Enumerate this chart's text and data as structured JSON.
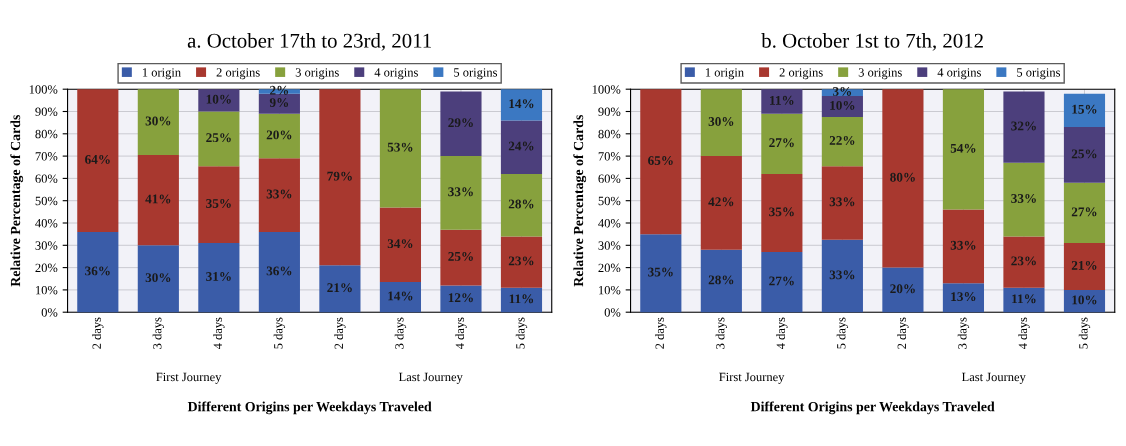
{
  "chart_data": [
    {
      "type": "bar",
      "title": "a. October 17th to 23rd, 2011",
      "xlabel": "Different Origins per Weekdays Traveled",
      "ylabel": "Relative Percentage of Cards",
      "categories": [
        "2 days",
        "3 days",
        "4 days",
        "5 days",
        "2 days",
        "3 days",
        "4 days",
        "5 days"
      ],
      "annotations": [
        "First Journey",
        "Last Journey"
      ],
      "stacked": true,
      "legend": "top",
      "grid": true,
      "ylim": [
        0,
        100
      ],
      "yticks": [
        {
          "value": 0,
          "label": "0%"
        },
        {
          "value": 10,
          "label": "10%"
        },
        {
          "value": 20,
          "label": "20%"
        },
        {
          "value": 30,
          "label": "30%"
        },
        {
          "value": 40,
          "label": "40%"
        },
        {
          "value": 50,
          "label": "50%"
        },
        {
          "value": 60,
          "label": "60%"
        },
        {
          "value": 70,
          "label": "70%"
        },
        {
          "value": 80,
          "label": "80%"
        },
        {
          "value": 90,
          "label": "90%"
        },
        {
          "value": 100,
          "label": "100%"
        }
      ],
      "series": [
        {
          "name": "1 origin",
          "color": "#3a5ca8",
          "values": [
            36,
            30,
            31,
            36,
            21,
            13.5,
            12,
            11
          ],
          "value_labels": [
            "36%",
            "30%",
            "31%",
            "36%",
            "21%",
            "14%",
            "12%",
            "11%"
          ]
        },
        {
          "name": "2 origins",
          "color": "#a8382f",
          "values": [
            64,
            40.5,
            34.5,
            33,
            79,
            33.5,
            25,
            23
          ],
          "value_labels": [
            "64%",
            "41%",
            "35%",
            "33%",
            "79%",
            "34%",
            "25%",
            "23%"
          ]
        },
        {
          "name": "3 origins",
          "color": "#87a13d",
          "values": [
            null,
            29.5,
            24.5,
            20,
            null,
            53,
            33,
            28
          ],
          "value_labels": [
            null,
            "30%",
            "25%",
            "20%",
            null,
            "53%",
            "33%",
            "28%"
          ]
        },
        {
          "name": "4 origins",
          "color": "#4c3f7c",
          "values": [
            null,
            null,
            10,
            9,
            null,
            null,
            29,
            24
          ],
          "value_labels": [
            null,
            null,
            "10%",
            "9%",
            null,
            null,
            "29%",
            "24%"
          ]
        },
        {
          "name": "5 origins",
          "color": "#3b78c2",
          "values": [
            null,
            null,
            null,
            2,
            null,
            null,
            null,
            14
          ],
          "value_labels": [
            null,
            null,
            null,
            "2%",
            null,
            null,
            null,
            "14%"
          ]
        }
      ]
    },
    {
      "type": "bar",
      "title": "b. October 1st to 7th, 2012",
      "xlabel": "Different Origins per Weekdays Traveled",
      "ylabel": "Relative Percentage of Cards",
      "categories": [
        "2 days",
        "3 days",
        "4 days",
        "5 days",
        "2 days",
        "3 days",
        "4 days",
        "5 days"
      ],
      "annotations": [
        "First Journey",
        "Last Journey"
      ],
      "stacked": true,
      "legend": "top",
      "grid": true,
      "ylim": [
        0,
        100
      ],
      "yticks": [
        {
          "value": 0,
          "label": "0%"
        },
        {
          "value": 10,
          "label": "10%"
        },
        {
          "value": 20,
          "label": "20%"
        },
        {
          "value": 30,
          "label": "30%"
        },
        {
          "value": 40,
          "label": "40%"
        },
        {
          "value": 50,
          "label": "50%"
        },
        {
          "value": 60,
          "label": "60%"
        },
        {
          "value": 70,
          "label": "70%"
        },
        {
          "value": 80,
          "label": "80%"
        },
        {
          "value": 90,
          "label": "90%"
        },
        {
          "value": 100,
          "label": "100%"
        }
      ],
      "series": [
        {
          "name": "1 origin",
          "color": "#3a5ca8",
          "values": [
            35,
            28,
            27,
            32.5,
            20,
            13,
            11,
            10
          ],
          "value_labels": [
            "35%",
            "28%",
            "27%",
            "33%",
            "20%",
            "13%",
            "11%",
            "10%"
          ]
        },
        {
          "name": "2 origins",
          "color": "#a8382f",
          "values": [
            65,
            42,
            35,
            33,
            80,
            33,
            23,
            21
          ],
          "value_labels": [
            "65%",
            "42%",
            "35%",
            "33%",
            "80%",
            "33%",
            "23%",
            "21%"
          ]
        },
        {
          "name": "3 origins",
          "color": "#87a13d",
          "values": [
            null,
            30,
            27,
            22,
            null,
            54,
            33,
            27
          ],
          "value_labels": [
            null,
            "30%",
            "27%",
            "22%",
            null,
            "54%",
            "33%",
            "27%"
          ]
        },
        {
          "name": "4 origins",
          "color": "#4c3f7c",
          "values": [
            null,
            null,
            11,
            9.5,
            null,
            null,
            32,
            25
          ],
          "value_labels": [
            null,
            null,
            "11%",
            "10%",
            null,
            null,
            "32%",
            "25%"
          ]
        },
        {
          "name": "5 origins",
          "color": "#3b78c2",
          "values": [
            null,
            null,
            null,
            3,
            null,
            null,
            null,
            15
          ],
          "value_labels": [
            null,
            null,
            null,
            "3%",
            null,
            null,
            null,
            "15%"
          ]
        }
      ]
    }
  ]
}
